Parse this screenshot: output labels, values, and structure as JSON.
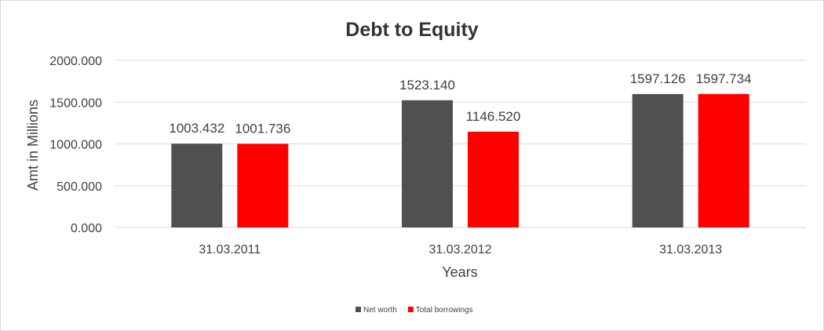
{
  "chart_data": {
    "type": "bar",
    "title": "Debt to Equity",
    "xlabel": "Years",
    "ylabel": "Amt in Millions",
    "categories": [
      "31.03.2011",
      "31.03.2012",
      "31.03.2013"
    ],
    "series": [
      {
        "name": "Net worth",
        "color": "#505050",
        "values": [
          1003.432,
          1523.14,
          1597.126
        ],
        "labels": [
          "1003.432",
          "1523.140",
          "1597.126"
        ]
      },
      {
        "name": "Total borrowings",
        "color": "#ff0000",
        "values": [
          1001.736,
          1146.52,
          1597.734
        ],
        "labels": [
          "1001.736",
          "1146.520",
          "1597.734"
        ]
      }
    ],
    "ylim": [
      0,
      2000
    ],
    "yticks": [
      {
        "value": 0,
        "label": "0.000"
      },
      {
        "value": 500,
        "label": "500.000"
      },
      {
        "value": 1000,
        "label": "1000.000"
      },
      {
        "value": 1500,
        "label": "1500.000"
      },
      {
        "value": 2000,
        "label": "2000.000"
      }
    ],
    "grid": true,
    "legend_position": "bottom"
  }
}
